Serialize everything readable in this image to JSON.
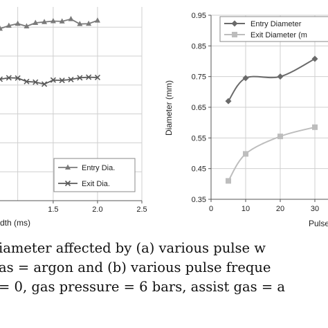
{
  "chart_data": [
    {
      "type": "line",
      "xlabel": "dth (ms)",
      "ylabel": "",
      "xlim": [
        0.9,
        2.5
      ],
      "ylim": [
        0.3,
        0.97
      ],
      "x_ticks": [
        "1.5",
        "2.0",
        "2.5"
      ],
      "grid": true,
      "legend_position": "bottom-right",
      "series": [
        {
          "name": "Entry Dia.",
          "marker": "triangle",
          "color": "#7a7a7a",
          "x": [
            0.9,
            1.0,
            1.1,
            1.2,
            1.3,
            1.4,
            1.5,
            1.6,
            1.7,
            1.8,
            1.9,
            2.0
          ],
          "y": [
            0.895,
            0.905,
            0.912,
            0.903,
            0.915,
            0.918,
            0.921,
            0.92,
            0.928,
            0.911,
            0.912,
            0.923
          ]
        },
        {
          "name": "Exit Dia.",
          "marker": "x",
          "color": "#5a5a5a",
          "x": [
            0.9,
            1.0,
            1.1,
            1.2,
            1.3,
            1.4,
            1.5,
            1.6,
            1.7,
            1.8,
            1.9,
            2.0
          ],
          "y": [
            0.72,
            0.725,
            0.724,
            0.712,
            0.71,
            0.703,
            0.717,
            0.716,
            0.719,
            0.725,
            0.727,
            0.726
          ]
        }
      ]
    },
    {
      "type": "line",
      "xlabel": "Pulse",
      "ylabel": "Diameter (mm)",
      "xlim": [
        0,
        35
      ],
      "ylim": [
        0.35,
        0.95
      ],
      "x_ticks": [
        "0",
        "10",
        "20",
        "30"
      ],
      "y_ticks": [
        "0.35",
        "0.45",
        "0.55",
        "0.65",
        "0.75",
        "0.85",
        "0.95"
      ],
      "grid": true,
      "legend_position": "top-right",
      "series": [
        {
          "name": "Entry Diameter",
          "marker": "diamond",
          "color": "#6a6a6a",
          "x": [
            5,
            10,
            20,
            30
          ],
          "y": [
            0.67,
            0.745,
            0.75,
            0.808
          ]
        },
        {
          "name": "Exit Diameter (m",
          "marker": "square",
          "color": "#bdbdbd",
          "x": [
            5,
            10,
            20,
            30
          ],
          "y": [
            0.41,
            0.498,
            0.555,
            0.585
          ]
        }
      ]
    }
  ],
  "caption": {
    "line1": "iameter affected by (a) various pulse w",
    "line2": "as = argon and (b) various pulse freque",
    "line3": "= 0, gas pressure = 6 bars, assist gas = a"
  }
}
